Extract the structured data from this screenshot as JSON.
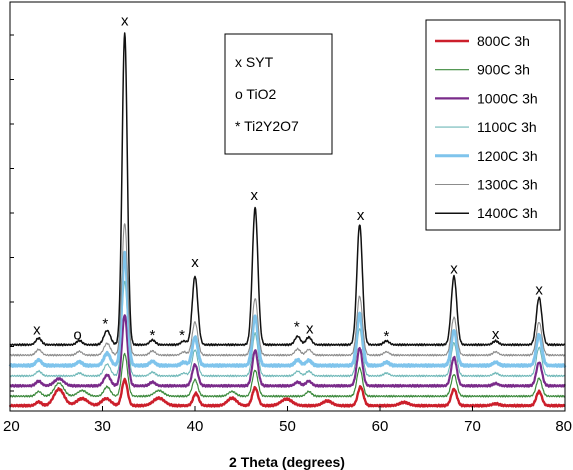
{
  "chart_data": {
    "type": "line",
    "title": "",
    "xlabel": "2 Theta (degrees)",
    "ylabel": "",
    "xlim": [
      20,
      80
    ],
    "xticks": [
      20,
      30,
      40,
      50,
      60,
      70,
      80
    ],
    "y_ticks_labeled": false,
    "grid": false,
    "legend_position": "top-right",
    "phase_key": [
      {
        "symbol": "x",
        "label": "x SYT"
      },
      {
        "symbol": "o",
        "label": "o TiO2"
      },
      {
        "symbol": "*",
        "label": "* Ti2Y2O7"
      }
    ],
    "series": [
      {
        "name": "800C 3h",
        "color": "#cc1f2b",
        "width": 2.4,
        "offset": 0,
        "baseline": 0.5,
        "peaks": [
          [
            23.1,
            0.8
          ],
          [
            25.3,
            3.5,
            0.55
          ],
          [
            27.8,
            1.5,
            0.6
          ],
          [
            30.4,
            1.5,
            0.5
          ],
          [
            32.4,
            5.5,
            0.3
          ],
          [
            36.1,
            1.6,
            0.6
          ],
          [
            40.1,
            2.6,
            0.3
          ],
          [
            44.0,
            1.6,
            0.5
          ],
          [
            46.5,
            3.8,
            0.3
          ],
          [
            49.9,
            1.4,
            0.6
          ],
          [
            54.3,
            1.0,
            0.5
          ],
          [
            57.9,
            4.0,
            0.3
          ],
          [
            62.6,
            0.7,
            0.5
          ],
          [
            68.0,
            3.5,
            0.3
          ],
          [
            72.5,
            0.4,
            0.4
          ],
          [
            77.2,
            3.0,
            0.3
          ]
        ]
      },
      {
        "name": "900C 3h",
        "color": "#3d8a3d",
        "width": 1.2,
        "offset": 2.2,
        "baseline": 0.3,
        "peaks": [
          [
            23.1,
            1.0
          ],
          [
            25.3,
            2.8,
            0.5
          ],
          [
            27.8,
            1.2,
            0.5
          ],
          [
            30.5,
            2.0,
            0.35
          ],
          [
            32.4,
            9.0,
            0.3
          ],
          [
            36.1,
            1.2,
            0.5
          ],
          [
            40.0,
            3.5,
            0.3
          ],
          [
            44.0,
            1.0,
            0.4
          ],
          [
            46.5,
            5.5,
            0.3
          ],
          [
            52.3,
            1.0,
            0.3
          ],
          [
            57.8,
            6.0,
            0.3
          ],
          [
            68.0,
            4.6,
            0.3
          ],
          [
            77.2,
            3.8,
            0.3
          ]
        ]
      },
      {
        "name": "1000C 3h",
        "color": "#7a2b8a",
        "width": 2.2,
        "offset": 4.4,
        "baseline": 0.3,
        "peaks": [
          [
            23.1,
            1.0
          ],
          [
            25.3,
            1.5,
            0.5
          ],
          [
            30.5,
            2.3,
            0.35
          ],
          [
            32.4,
            15.0,
            0.3
          ],
          [
            35.4,
            0.8
          ],
          [
            40.0,
            4.5,
            0.3
          ],
          [
            46.5,
            7.5,
            0.3
          ],
          [
            51.1,
            0.8
          ],
          [
            52.3,
            1.0,
            0.3
          ],
          [
            57.8,
            8.0,
            0.3
          ],
          [
            68.0,
            6.0,
            0.3
          ],
          [
            72.5,
            0.5
          ],
          [
            77.2,
            5.0,
            0.3
          ]
        ]
      },
      {
        "name": "1100C 3h",
        "color": "#6fb8b8",
        "width": 1.1,
        "offset": 6.6,
        "baseline": 0.2,
        "peaks": [
          [
            23.1,
            1.0
          ],
          [
            27.5,
            0.6
          ],
          [
            30.5,
            2.5,
            0.35
          ],
          [
            32.4,
            20.0,
            0.3
          ],
          [
            35.4,
            0.8
          ],
          [
            38.8,
            0.6
          ],
          [
            40.0,
            5.5,
            0.3
          ],
          [
            46.5,
            9.0,
            0.3
          ],
          [
            51.1,
            1.0
          ],
          [
            52.3,
            1.0,
            0.3
          ],
          [
            57.8,
            10.0,
            0.3
          ],
          [
            60.7,
            0.6
          ],
          [
            68.0,
            7.0,
            0.3
          ],
          [
            72.5,
            0.6
          ],
          [
            77.2,
            6.0,
            0.3
          ]
        ]
      },
      {
        "name": "1200C 3h",
        "color": "#7fc4ec",
        "width": 3.0,
        "offset": 8.8,
        "baseline": 0.2,
        "peaks": [
          [
            23.1,
            1.2
          ],
          [
            27.5,
            0.8
          ],
          [
            30.5,
            2.6,
            0.35
          ],
          [
            32.4,
            24.0,
            0.3
          ],
          [
            35.4,
            0.9
          ],
          [
            38.8,
            0.7
          ],
          [
            40.0,
            6.0,
            0.3
          ],
          [
            46.5,
            10.5,
            0.3
          ],
          [
            51.1,
            1.2
          ],
          [
            52.3,
            1.1,
            0.3
          ],
          [
            57.8,
            11.0,
            0.3
          ],
          [
            60.7,
            0.7
          ],
          [
            68.0,
            7.5,
            0.3
          ],
          [
            72.5,
            0.7
          ],
          [
            77.2,
            6.5,
            0.3
          ]
        ]
      },
      {
        "name": "1300C 3h",
        "color": "#8c8c8c",
        "width": 1.1,
        "offset": 11.0,
        "baseline": 0.2,
        "peaks": [
          [
            23.1,
            1.2
          ],
          [
            27.5,
            0.8
          ],
          [
            30.5,
            2.5,
            0.35
          ],
          [
            32.4,
            28.0,
            0.3
          ],
          [
            35.4,
            0.9
          ],
          [
            38.8,
            0.7
          ],
          [
            40.0,
            7.0,
            0.3
          ],
          [
            46.5,
            12.0,
            0.3
          ],
          [
            51.1,
            1.3
          ],
          [
            52.3,
            1.2,
            0.3
          ],
          [
            57.8,
            12.5,
            0.3
          ],
          [
            60.7,
            0.7
          ],
          [
            68.0,
            8.0,
            0.3
          ],
          [
            72.5,
            0.7
          ],
          [
            77.2,
            7.0,
            0.3
          ]
        ]
      },
      {
        "name": "1400C 3h",
        "color": "#111111",
        "width": 1.5,
        "offset": 13.2,
        "baseline": 0.2,
        "peaks": [
          [
            23.1,
            1.4
          ],
          [
            27.5,
            0.9
          ],
          [
            30.5,
            3.0,
            0.35
          ],
          [
            32.4,
            66.0,
            0.28
          ],
          [
            35.4,
            1.0
          ],
          [
            38.8,
            0.8
          ],
          [
            40.0,
            14.5,
            0.3
          ],
          [
            46.5,
            29.0,
            0.3
          ],
          [
            51.1,
            1.8
          ],
          [
            52.3,
            1.6,
            0.3
          ],
          [
            57.8,
            25.5,
            0.3
          ],
          [
            60.7,
            0.8
          ],
          [
            68.0,
            14.5,
            0.3
          ],
          [
            72.5,
            0.8
          ],
          [
            77.2,
            10.0,
            0.3
          ]
        ]
      }
    ],
    "annotations": [
      {
        "text": "x",
        "x": 22.9,
        "y": 15.6
      },
      {
        "text": "o",
        "x": 27.3,
        "y": 14.5
      },
      {
        "text": "*",
        "x": 30.3,
        "y": 16.8
      },
      {
        "text": "x",
        "x": 32.4,
        "y": 81.0
      },
      {
        "text": "*",
        "x": 35.4,
        "y": 14.4
      },
      {
        "text": "*",
        "x": 38.6,
        "y": 14.4
      },
      {
        "text": "x",
        "x": 40.0,
        "y": 29.9
      },
      {
        "text": "x",
        "x": 46.4,
        "y": 44.1
      },
      {
        "text": "*",
        "x": 51.0,
        "y": 16.2
      },
      {
        "text": "x",
        "x": 52.4,
        "y": 15.8
      },
      {
        "text": "x",
        "x": 57.9,
        "y": 39.8
      },
      {
        "text": "*",
        "x": 60.7,
        "y": 14.2
      },
      {
        "text": "x",
        "x": 68.0,
        "y": 28.5
      },
      {
        "text": "x",
        "x": 72.5,
        "y": 14.6
      },
      {
        "text": "x",
        "x": 77.2,
        "y": 24.0
      }
    ]
  }
}
